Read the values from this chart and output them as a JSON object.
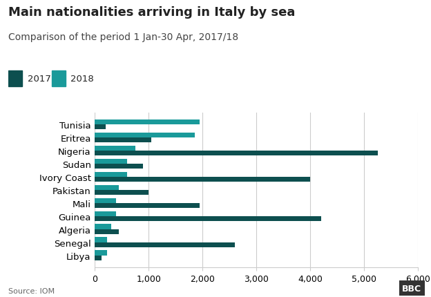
{
  "title": "Main nationalities arriving in Italy by sea",
  "subtitle": "Comparison of the period 1 Jan-30 Apr, 2017/18",
  "source": "Source: IOM",
  "categories": [
    "Tunisia",
    "Eritrea",
    "Nigeria",
    "Sudan",
    "Ivory Coast",
    "Pakistan",
    "Mali",
    "Guinea",
    "Algeria",
    "Senegal",
    "Libya"
  ],
  "values_2017": [
    200,
    1050,
    5250,
    900,
    4000,
    1000,
    1950,
    4200,
    450,
    2600,
    120
  ],
  "values_2018": [
    1950,
    1850,
    750,
    600,
    600,
    450,
    400,
    400,
    300,
    230,
    230
  ],
  "color_2017": "#0d4f4f",
  "color_2018": "#1a9a9a",
  "xlim": [
    0,
    6000
  ],
  "xticks": [
    0,
    1000,
    2000,
    3000,
    4000,
    5000,
    6000
  ],
  "xtick_labels": [
    "0",
    "1,000",
    "2,000",
    "3,000",
    "4,000",
    "5,000",
    "6,000"
  ],
  "background_color": "#ffffff",
  "title_fontsize": 13,
  "subtitle_fontsize": 10,
  "label_fontsize": 9.5,
  "tick_fontsize": 9,
  "bar_height": 0.38,
  "legend_2017": "2017",
  "legend_2018": "2018"
}
